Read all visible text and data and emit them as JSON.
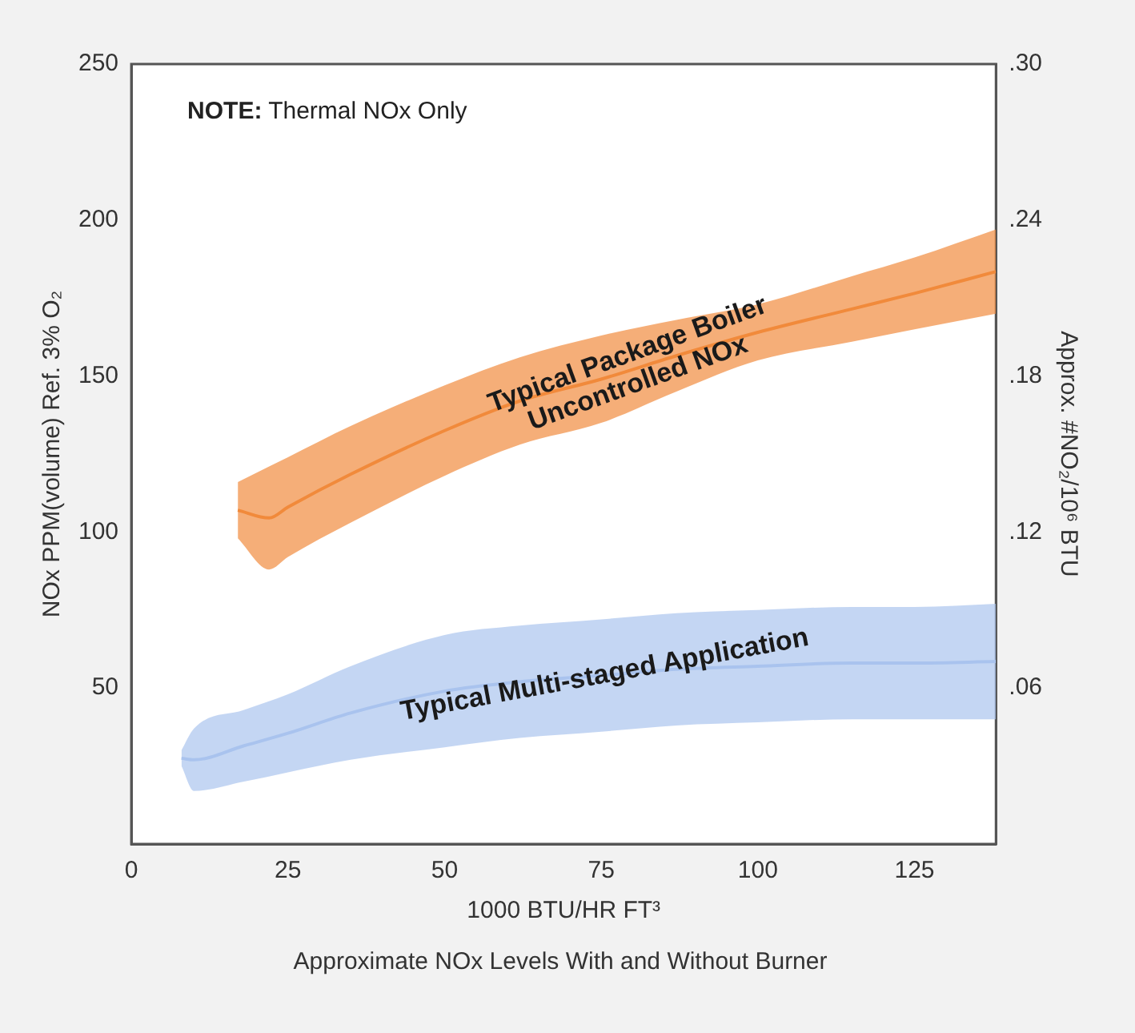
{
  "chart_data": {
    "type": "line",
    "title": "Approximate NOx Levels With and Without Burner",
    "xlabel": "1000 BTU/HR FT³",
    "ylabel": "NOx PPM(volume) Ref. 3% O₂",
    "y2label": "Approx. #NO₂/10⁶ BTU",
    "annotations": [
      "NOTE: Thermal NOx Only"
    ],
    "series": [
      {
        "name": "Typical Package Boiler Uncontrolled NOx",
        "color": "#f08a3c",
        "x": [
          17,
          22,
          25,
          35,
          50,
          62,
          75,
          87,
          100,
          115,
          125,
          138
        ],
        "values": [
          107,
          104.5,
          108,
          118.5,
          132.5,
          142,
          149,
          156.5,
          164,
          171.5,
          176.5,
          183.5
        ],
        "upper": [
          116,
          121,
          124,
          134,
          147,
          156,
          163,
          168,
          173,
          182,
          188,
          197
        ],
        "lower": [
          98,
          88,
          92,
          103,
          118,
          128,
          135,
          145,
          155,
          161,
          165,
          170
        ]
      },
      {
        "name": "Typical Multi-staged Application",
        "color": "#a9c3ee",
        "x": [
          8,
          10,
          18,
          25,
          35,
          50,
          62,
          75,
          87,
          100,
          115,
          125,
          138
        ],
        "values": [
          27.5,
          27,
          31.5,
          35.5,
          42,
          49,
          52,
          54,
          56,
          57,
          58,
          58,
          58.5
        ],
        "upper": [
          30,
          37,
          43,
          48,
          57,
          67,
          70,
          72,
          74,
          75,
          76,
          76,
          77
        ],
        "lower": [
          25,
          17,
          20,
          23,
          27,
          31,
          34,
          36,
          38,
          39,
          40,
          40,
          40
        ]
      }
    ],
    "xlim": [
      0,
      138
    ],
    "xticks": [
      0,
      25,
      50,
      75,
      100,
      125
    ],
    "ylim": [
      0,
      250
    ],
    "yticks": [
      50,
      100,
      150,
      200,
      250
    ],
    "y2lim": [
      0,
      0.3
    ],
    "y2ticks": [
      {
        "value": 0.06,
        "label": ".06"
      },
      {
        "value": 0.12,
        "label": ".12"
      },
      {
        "value": 0.18,
        "label": ".18"
      },
      {
        "value": 0.24,
        "label": ".24"
      },
      {
        "value": 0.3,
        "label": ".30"
      }
    ],
    "legend": false,
    "grid": false
  }
}
